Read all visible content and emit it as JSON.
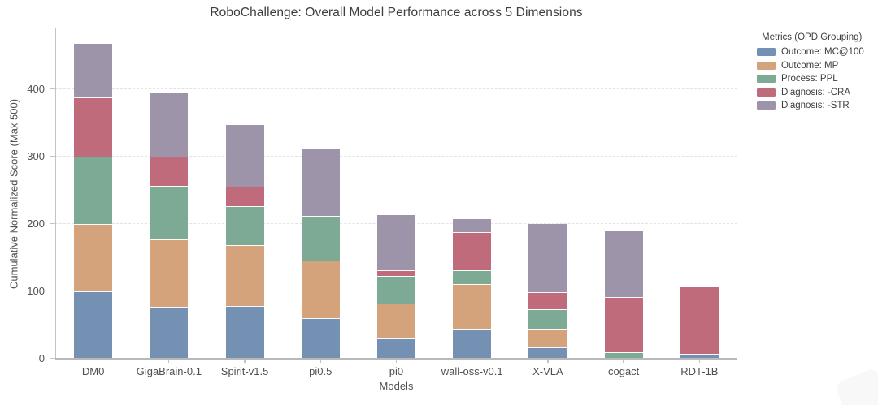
{
  "chart_data": {
    "type": "bar",
    "stacked": true,
    "title": "RoboChallenge: Overall Model Performance across 5 Dimensions",
    "xlabel": "Models",
    "ylabel": "Cumulative Normalized Score (Max 500)",
    "ylim": [
      0,
      490
    ],
    "yticks": [
      0,
      100,
      200,
      300,
      400
    ],
    "grid": "horizontal dashed gridlines",
    "legend_title": "Metrics (OPD Grouping)",
    "legend_position": "outside top-right",
    "categories": [
      "DM0",
      "GigaBrain-0.1",
      "Spirit-v1.5",
      "pi0.5",
      "pi0",
      "wall-oss-v0.1",
      "X-VLA",
      "cogact",
      "RDT-1B"
    ],
    "series": [
      {
        "name": "Outcome: MC@100",
        "color": "#7491b3",
        "values": [
          100,
          77,
          78,
          60,
          30,
          45,
          17,
          0,
          7
        ]
      },
      {
        "name": "Outcome: MP",
        "color": "#d4a37b",
        "values": [
          100,
          100,
          90,
          86,
          52,
          66,
          28,
          0,
          0
        ]
      },
      {
        "name": "Process: PPL",
        "color": "#7daa95",
        "values": [
          100,
          79,
          58,
          66,
          41,
          20,
          29,
          10,
          0
        ]
      },
      {
        "name": "Diagnosis: -CRA",
        "color": "#c06b7b",
        "values": [
          88,
          44,
          29,
          0,
          8,
          57,
          25,
          81,
          100
        ]
      },
      {
        "name": "Diagnosis: -STR",
        "color": "#9e94a9",
        "values": [
          79,
          95,
          92,
          100,
          82,
          19,
          101,
          99,
          0
        ]
      }
    ]
  }
}
